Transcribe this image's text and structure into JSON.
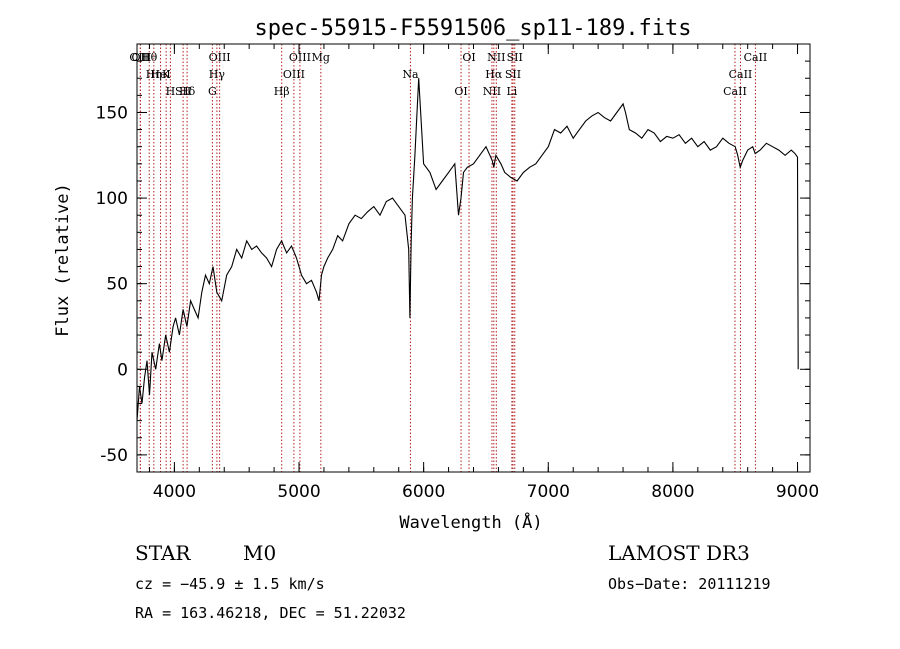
{
  "chart_data": {
    "type": "line",
    "title": "spec-55915-F5591506_sp11-189.fits",
    "xlabel": "Wavelength (Å)",
    "ylabel": "Flux (relative)",
    "xlim": [
      3700,
      9100
    ],
    "ylim": [
      -60,
      190
    ],
    "xticks": [
      "4000",
      "5000",
      "6000",
      "7000",
      "8000",
      "9000"
    ],
    "yticks": [
      "-50",
      "0",
      "50",
      "100",
      "150"
    ],
    "series": [
      {
        "name": "flux",
        "x": [
          3700,
          3720,
          3740,
          3760,
          3780,
          3800,
          3820,
          3850,
          3880,
          3900,
          3930,
          3960,
          3990,
          4010,
          4040,
          4070,
          4100,
          4130,
          4160,
          4190,
          4220,
          4250,
          4280,
          4310,
          4340,
          4380,
          4420,
          4460,
          4500,
          4540,
          4580,
          4620,
          4660,
          4700,
          4740,
          4780,
          4820,
          4860,
          4900,
          4940,
          4980,
          5020,
          5060,
          5100,
          5140,
          5160,
          5180,
          5200,
          5230,
          5270,
          5310,
          5350,
          5400,
          5450,
          5500,
          5550,
          5600,
          5650,
          5700,
          5750,
          5800,
          5850,
          5880,
          5890,
          5895,
          5900,
          5910,
          5930,
          5960,
          6000,
          6050,
          6100,
          6150,
          6200,
          6250,
          6280,
          6300,
          6320,
          6350,
          6400,
          6450,
          6500,
          6550,
          6563,
          6580,
          6620,
          6650,
          6700,
          6750,
          6800,
          6850,
          6900,
          6950,
          7000,
          7050,
          7100,
          7150,
          7200,
          7250,
          7300,
          7350,
          7400,
          7450,
          7500,
          7550,
          7600,
          7620,
          7650,
          7700,
          7750,
          7800,
          7850,
          7900,
          7950,
          8000,
          8050,
          8100,
          8150,
          8200,
          8250,
          8300,
          8350,
          8400,
          8450,
          8500,
          8520,
          8540,
          8560,
          8600,
          8640,
          8660,
          8700,
          8750,
          8800,
          8850,
          8900,
          8950,
          8980,
          9000,
          9005
        ],
        "values": [
          -30,
          -10,
          -20,
          -5,
          5,
          -15,
          10,
          0,
          15,
          5,
          20,
          10,
          25,
          30,
          20,
          35,
          25,
          40,
          35,
          30,
          45,
          55,
          50,
          60,
          45,
          40,
          55,
          60,
          70,
          65,
          75,
          70,
          72,
          68,
          65,
          60,
          70,
          75,
          68,
          72,
          65,
          55,
          50,
          52,
          45,
          40,
          55,
          60,
          65,
          70,
          78,
          75,
          85,
          90,
          88,
          92,
          95,
          90,
          98,
          100,
          95,
          90,
          70,
          30,
          55,
          75,
          100,
          125,
          170,
          120,
          115,
          105,
          110,
          115,
          120,
          90,
          100,
          115,
          118,
          120,
          125,
          130,
          122,
          118,
          125,
          120,
          115,
          112,
          110,
          115,
          118,
          120,
          125,
          130,
          140,
          138,
          142,
          135,
          140,
          145,
          148,
          150,
          147,
          145,
          150,
          155,
          150,
          140,
          138,
          135,
          140,
          138,
          133,
          136,
          135,
          137,
          132,
          135,
          130,
          133,
          128,
          130,
          135,
          132,
          130,
          125,
          118,
          122,
          128,
          130,
          126,
          128,
          132,
          130,
          128,
          125,
          128,
          126,
          124,
          0
        ]
      }
    ],
    "line_markers": [
      {
        "label": "Hθ",
        "x": 3798
      },
      {
        "label": "K",
        "x": 3934
      },
      {
        "label": "Hδ",
        "x": 4102
      },
      {
        "label": "OII",
        "x": 3727
      },
      {
        "label": "HeI",
        "x": 3889
      },
      {
        "label": "SII",
        "x": 4070
      },
      {
        "label": "OIII",
        "x": 3727
      },
      {
        "label": "Hη",
        "x": 3835
      },
      {
        "label": "H",
        "x": 3968
      },
      {
        "label": "OIII",
        "x": 4363
      },
      {
        "label": "Hγ",
        "x": 4341
      },
      {
        "label": "G",
        "x": 4305
      },
      {
        "label": "OIII",
        "x": 5007
      },
      {
        "label": "OIII",
        "x": 4959
      },
      {
        "label": "Hβ",
        "x": 4861
      },
      {
        "label": "Mg",
        "x": 5175
      },
      {
        "label": "Na",
        "x": 5894
      },
      {
        "label": "OI",
        "x": 6300
      },
      {
        "label": "OI",
        "x": 6364
      },
      {
        "label": "Hα",
        "x": 6563
      },
      {
        "label": "NII",
        "x": 6548
      },
      {
        "label": "NII",
        "x": 6583
      },
      {
        "label": "SII",
        "x": 6717
      },
      {
        "label": "Li",
        "x": 6708
      },
      {
        "label": "SII",
        "x": 6731
      },
      {
        "label": "CaII",
        "x": 8542
      },
      {
        "label": "CaII",
        "x": 8498
      },
      {
        "label": "CaII",
        "x": 8662
      }
    ],
    "grid": false
  },
  "info": {
    "class": "STAR",
    "subclass": "M0",
    "survey": "LAMOST DR3",
    "cz": "cz = −45.9 ± 1.5 km/s",
    "obsdate": "Obs−Date: 20111219",
    "radec": "RA = 163.46218, DEC =  51.22032"
  },
  "colors": {
    "marker": "#b22222",
    "axes": "#000000",
    "spectrum": "#000000"
  }
}
